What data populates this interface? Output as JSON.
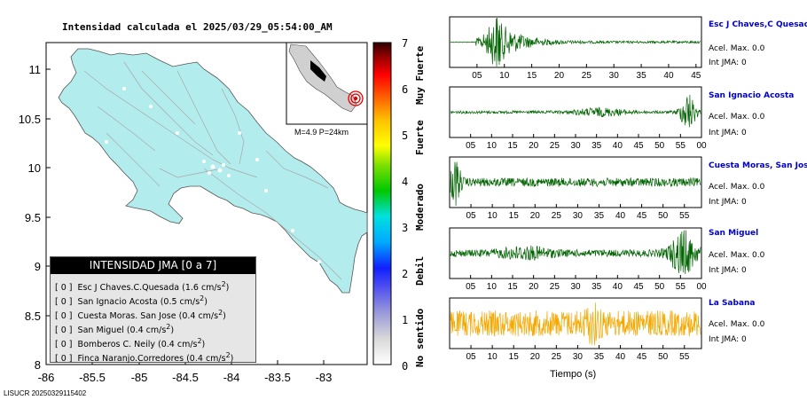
{
  "title": "Intensidad calculada el 2025/03/29_05:54:00_AM",
  "footer_id": "LISUCR 20250329115402",
  "map": {
    "y_ticks": [
      "11",
      "10.5",
      "10",
      "9.5",
      "9",
      "8.5",
      "8"
    ],
    "x_ticks": [
      "-86",
      "-85.5",
      "-85",
      "-84.5",
      "-84",
      "-83.5",
      "-83"
    ],
    "land_color": "#b3ecec",
    "inset_label": "M=4.9 P=24km"
  },
  "colorbar": {
    "ticks": [
      "7",
      "6",
      "5",
      "4",
      "3",
      "2",
      "1",
      "0"
    ],
    "categories": [
      "Muy Fuerte",
      "Fuerte",
      "Moderado",
      "Debil",
      "No sentido"
    ]
  },
  "legend": {
    "title": "INTENSIDAD JMA [0 a 7]",
    "rows": [
      {
        "prefix": "[ 0 ]",
        "text": "Esc J Chaves.C.Quesada (1.6 cm/s",
        "sup": "2",
        "close": ")"
      },
      {
        "prefix": "[ 0 ]",
        "text": "San Ignacio Acosta (0.5 cm/s",
        "sup": "2",
        "close": ")"
      },
      {
        "prefix": "[ 0 ]",
        "text": "Cuesta Moras. San Jose (0.4 cm/s",
        "sup": "2",
        "close": ")"
      },
      {
        "prefix": "[ 0 ]",
        "text": "San Miguel (0.4 cm/s",
        "sup": "2",
        "close": ")"
      },
      {
        "prefix": "[ 0 ]",
        "text": "Bomberos C. Neily (0.4 cm/s",
        "sup": "2",
        "close": ")"
      },
      {
        "prefix": "[ 0 ]",
        "text": "Finca Naranjo.Corredores (0.4 cm/s",
        "sup": "2",
        "close": ")"
      }
    ]
  },
  "stations": [
    {
      "name": "Esc J Chaves,C Quesada",
      "acel": "Acel. Max. 0.0",
      "jma": "Int JMA: 0",
      "color": "#006400",
      "ticks": [
        "05",
        "10",
        "15",
        "20",
        "25",
        "30",
        "35",
        "40",
        "45"
      ],
      "x_max": 46,
      "envelope": "burst_early"
    },
    {
      "name": "San Ignacio Acosta",
      "acel": "Acel. Max. 0.0",
      "jma": "Int JMA: 0",
      "color": "#006400",
      "ticks": [
        "05",
        "10",
        "15",
        "20",
        "25",
        "30",
        "35",
        "40",
        "45",
        "50",
        "55",
        "00"
      ],
      "x_max": 60,
      "envelope": "late"
    },
    {
      "name": "Cuesta Moras, San Jose",
      "acel": "Acel. Max. 0.0",
      "jma": "Int JMA: 0",
      "color": "#006400",
      "ticks": [
        "05",
        "10",
        "15",
        "20",
        "25",
        "30",
        "35",
        "40",
        "45",
        "50",
        "55"
      ],
      "x_max": 59,
      "envelope": "start"
    },
    {
      "name": "San Miguel",
      "acel": "Acel. Max. 0.0",
      "jma": "Int JMA: 0",
      "color": "#006400",
      "ticks": [
        "05",
        "10",
        "15",
        "20",
        "25",
        "30",
        "35",
        "40",
        "45",
        "50",
        "55",
        "00"
      ],
      "x_max": 60,
      "envelope": "end"
    },
    {
      "name": "La Sabana",
      "acel": "Acel. Max. 0.0",
      "jma": "Int JMA: 0",
      "color": "#f5a800",
      "ticks": [
        "05",
        "10",
        "15",
        "20",
        "25",
        "30",
        "35",
        "40",
        "45",
        "50",
        "55"
      ],
      "x_max": 59,
      "envelope": "noise"
    }
  ],
  "xlabel": "Tiempo (s)",
  "chart_data": [
    {
      "type": "heatmap",
      "title": "Intensidad calculada el 2025/03/29_05:54:00_AM",
      "xlabel": "",
      "ylabel": "",
      "xlim": [
        -86,
        -82.6
      ],
      "ylim": [
        8,
        11.3
      ],
      "colorbar_range": [
        0,
        7
      ],
      "colorbar_labels": [
        "No sentido",
        "Debil",
        "Moderado",
        "Fuerte",
        "Muy Fuerte"
      ],
      "stations_intensity": [
        {
          "name": "Esc J Chaves.C.Quesada",
          "jma": 0,
          "accel_cm_s2": 1.6
        },
        {
          "name": "San Ignacio Acosta",
          "jma": 0,
          "accel_cm_s2": 0.5
        },
        {
          "name": "Cuesta Moras. San Jose",
          "jma": 0,
          "accel_cm_s2": 0.4
        },
        {
          "name": "San Miguel",
          "jma": 0,
          "accel_cm_s2": 0.4
        },
        {
          "name": "Bomberos C. Neily",
          "jma": 0,
          "accel_cm_s2": 0.4
        },
        {
          "name": "Finca Naranjo.Corredores",
          "jma": 0,
          "accel_cm_s2": 0.4
        }
      ]
    },
    {
      "type": "line",
      "xlabel": "Tiempo (s)",
      "series": [
        {
          "name": "Esc J Chaves,C Quesada",
          "acel_max": 0.0,
          "int_jma": 0
        },
        {
          "name": "San Ignacio Acosta",
          "acel_max": 0.0,
          "int_jma": 0
        },
        {
          "name": "Cuesta Moras, San Jose",
          "acel_max": 0.0,
          "int_jma": 0
        },
        {
          "name": "San Miguel",
          "acel_max": 0.0,
          "int_jma": 0
        },
        {
          "name": "La Sabana",
          "acel_max": 0.0,
          "int_jma": 0
        }
      ]
    }
  ]
}
